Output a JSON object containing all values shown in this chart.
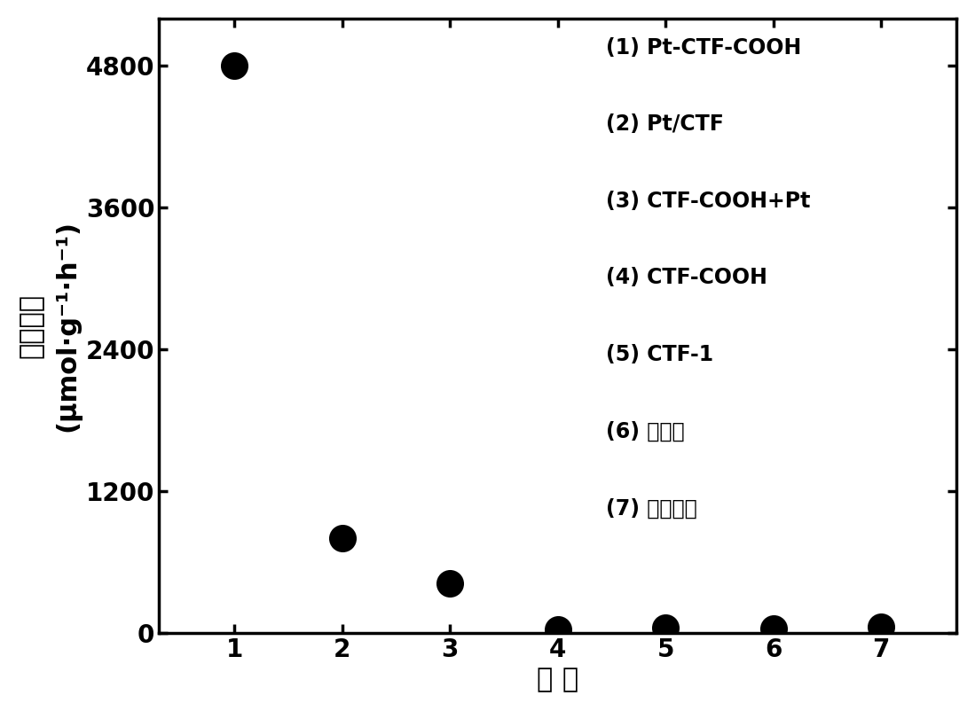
{
  "x": [
    1,
    2,
    3,
    4,
    5,
    6,
    7
  ],
  "y": [
    4800,
    800,
    420,
    30,
    40,
    35,
    50
  ],
  "xlabel": "样 品",
  "ylim": [
    0,
    5200
  ],
  "xlim": [
    0.3,
    7.7
  ],
  "yticks": [
    0,
    1200,
    2400,
    3600,
    4800
  ],
  "xticks": [
    1,
    2,
    3,
    4,
    5,
    6,
    7
  ],
  "marker_color": "#000000",
  "marker_size": 500,
  "background_color": "#ffffff",
  "legend_items": [
    "(1) Pt-CTF-COOH",
    "(2) Pt/CTF",
    "(3) CTF-COOH+Pt",
    "(4) CTF-COOH",
    "(5) CTF-1",
    "(6) 无光照",
    "(7) 无催化剂"
  ],
  "spine_linewidth": 2.5,
  "tick_labelsize": 20,
  "axis_labelsize": 22,
  "legend_fontsize": 17,
  "ylabel_cn": "产氢速率",
  "ylabel_en": "(μmol·g⁻¹·h⁻¹)"
}
